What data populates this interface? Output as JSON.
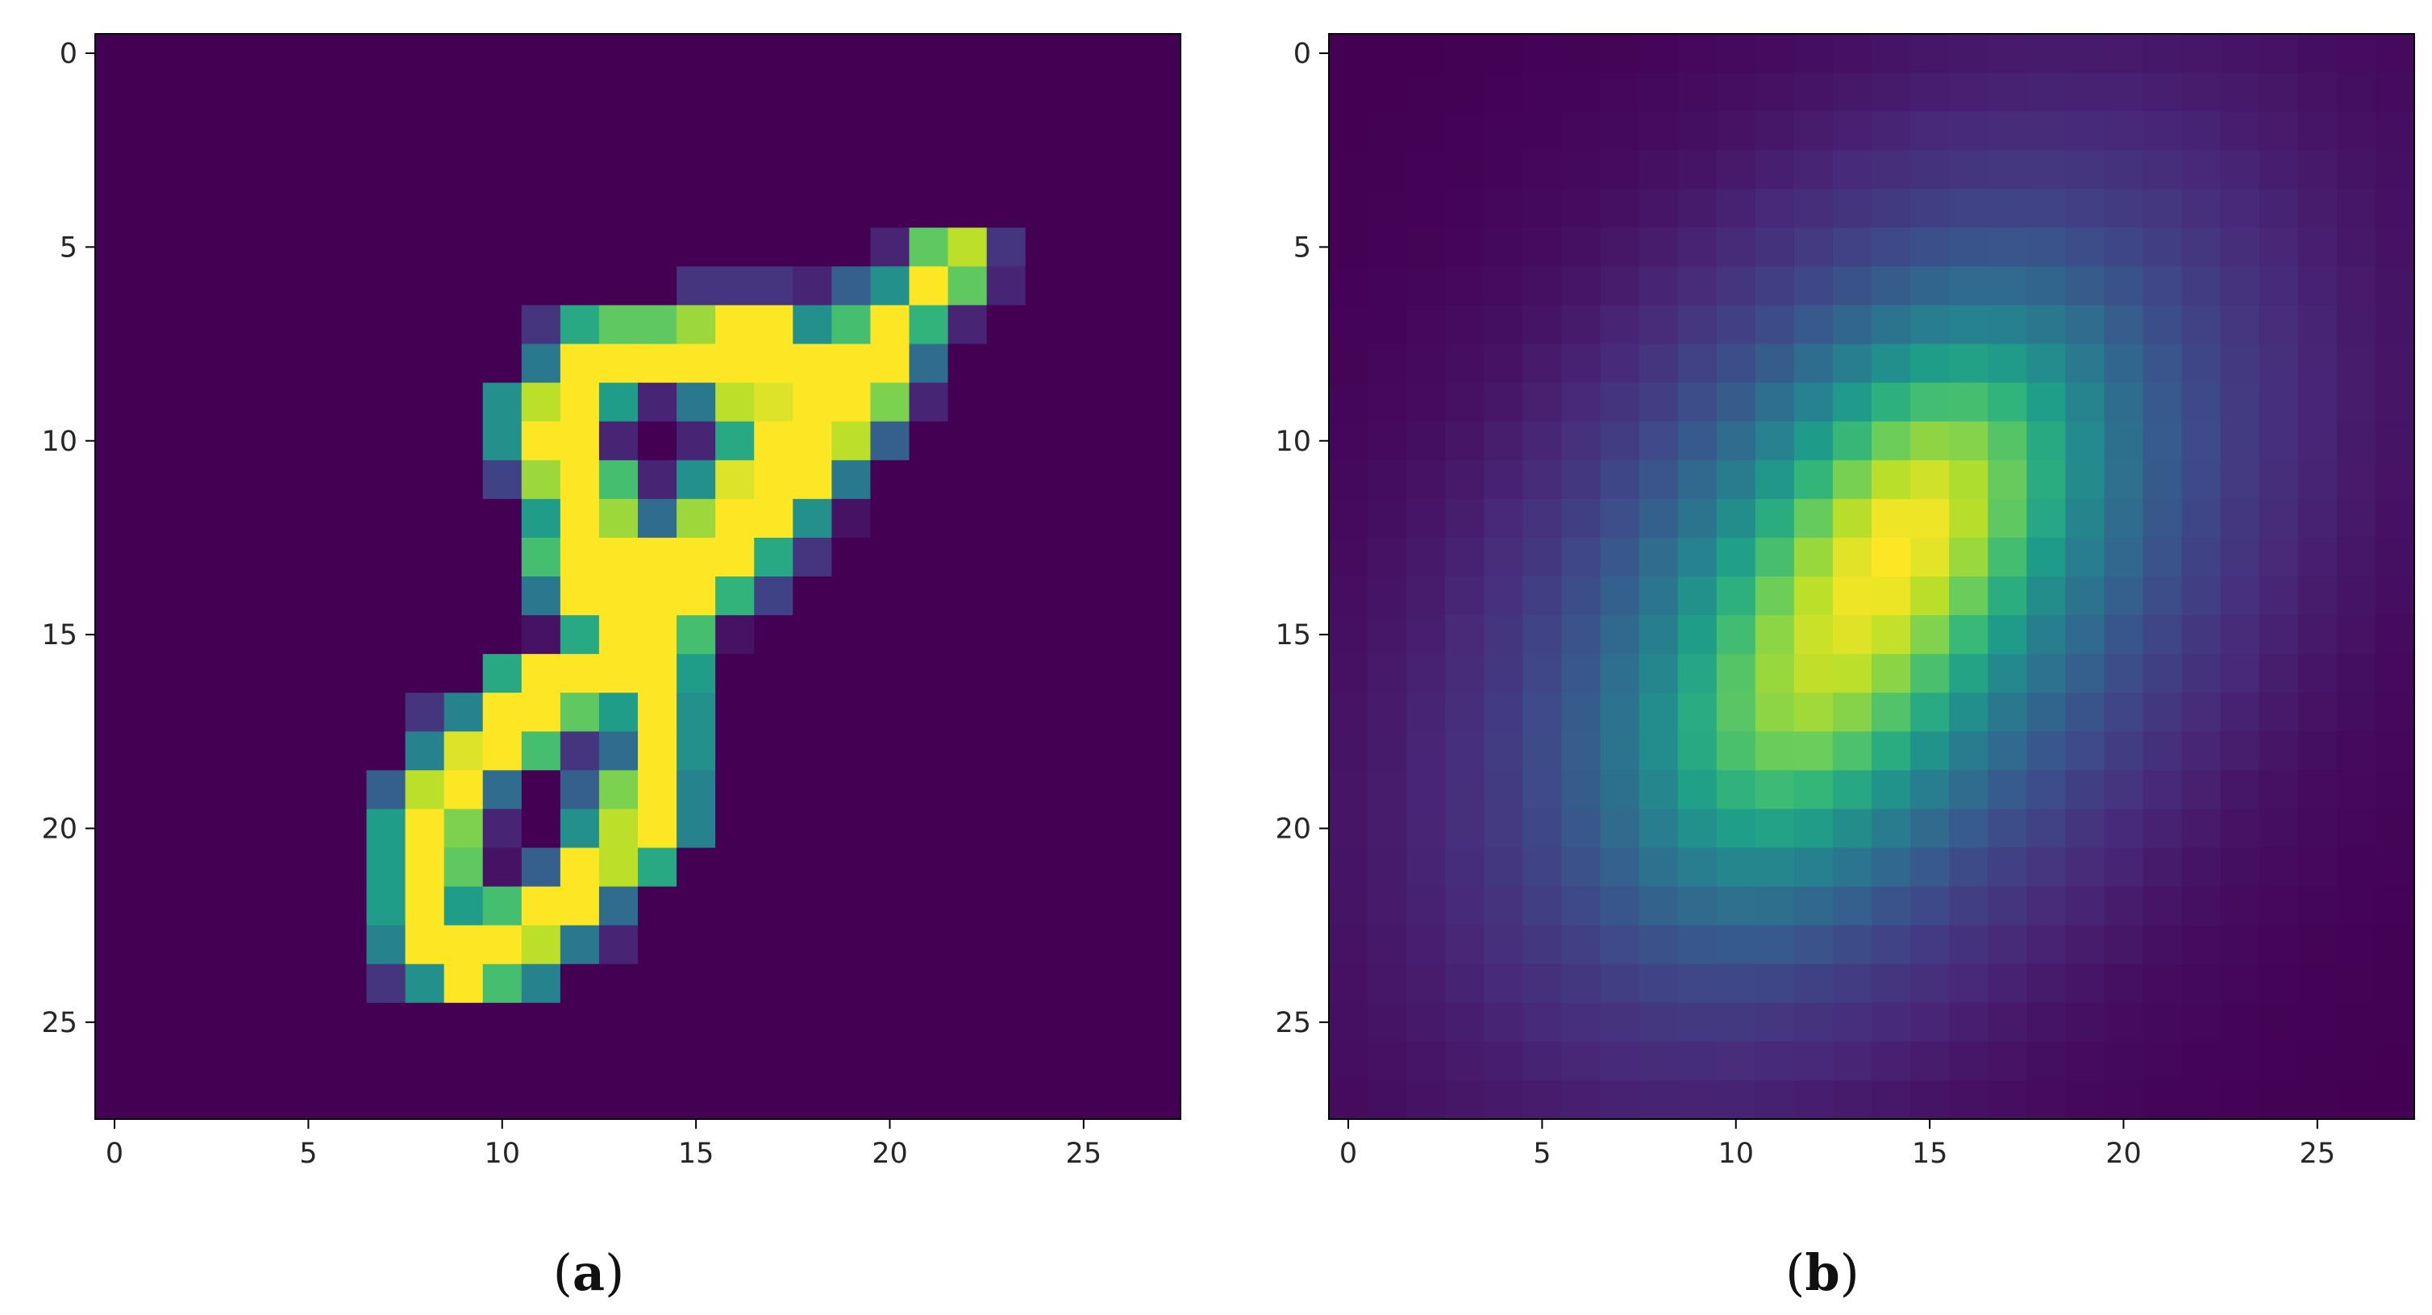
{
  "colormap": [
    "#440154",
    "#482878",
    "#3e4989",
    "#31688e",
    "#26828e",
    "#1f9e89",
    "#35b779",
    "#6ece58",
    "#b5de2b",
    "#fde725"
  ],
  "chart_data": [
    {
      "type": "heatmap",
      "caption": "(a)",
      "grid_size": [
        28,
        28
      ],
      "xticks": [
        0,
        5,
        10,
        15,
        20,
        25
      ],
      "yticks": [
        0,
        5,
        10,
        15,
        20,
        25
      ],
      "xlim": [
        -0.5,
        27.5
      ],
      "ylim": [
        27.5,
        -0.5
      ],
      "vmin": 0,
      "vmax": 1,
      "pixels": [
        [
          5,
          20,
          0.1
        ],
        [
          5,
          21,
          0.75
        ],
        [
          5,
          22,
          0.9
        ],
        [
          5,
          23,
          0.15
        ],
        [
          6,
          15,
          0.15
        ],
        [
          6,
          16,
          0.15
        ],
        [
          6,
          17,
          0.15
        ],
        [
          6,
          18,
          0.1
        ],
        [
          6,
          19,
          0.3
        ],
        [
          6,
          20,
          0.5
        ],
        [
          6,
          21,
          1.0
        ],
        [
          6,
          22,
          0.75
        ],
        [
          6,
          23,
          0.1
        ],
        [
          7,
          11,
          0.15
        ],
        [
          7,
          12,
          0.6
        ],
        [
          7,
          13,
          0.75
        ],
        [
          7,
          14,
          0.75
        ],
        [
          7,
          15,
          0.85
        ],
        [
          7,
          16,
          1.0
        ],
        [
          7,
          17,
          1.0
        ],
        [
          7,
          18,
          0.5
        ],
        [
          7,
          19,
          0.7
        ],
        [
          7,
          20,
          1.0
        ],
        [
          7,
          21,
          0.65
        ],
        [
          7,
          22,
          0.1
        ],
        [
          8,
          11,
          0.4
        ],
        [
          8,
          12,
          1.0
        ],
        [
          8,
          13,
          1.0
        ],
        [
          8,
          14,
          1.0
        ],
        [
          8,
          15,
          1.0
        ],
        [
          8,
          16,
          1.0
        ],
        [
          8,
          17,
          1.0
        ],
        [
          8,
          18,
          1.0
        ],
        [
          8,
          19,
          1.0
        ],
        [
          8,
          20,
          1.0
        ],
        [
          8,
          21,
          0.35
        ],
        [
          9,
          10,
          0.5
        ],
        [
          9,
          11,
          0.9
        ],
        [
          9,
          12,
          1.0
        ],
        [
          9,
          13,
          0.55
        ],
        [
          9,
          14,
          0.1
        ],
        [
          9,
          15,
          0.4
        ],
        [
          9,
          16,
          0.9
        ],
        [
          9,
          17,
          0.95
        ],
        [
          9,
          18,
          1.0
        ],
        [
          9,
          19,
          1.0
        ],
        [
          9,
          20,
          0.8
        ],
        [
          9,
          21,
          0.1
        ],
        [
          10,
          10,
          0.5
        ],
        [
          10,
          11,
          1.0
        ],
        [
          10,
          12,
          1.0
        ],
        [
          10,
          13,
          0.1
        ],
        [
          10,
          15,
          0.1
        ],
        [
          10,
          16,
          0.6
        ],
        [
          10,
          17,
          1.0
        ],
        [
          10,
          18,
          1.0
        ],
        [
          10,
          19,
          0.9
        ],
        [
          10,
          20,
          0.3
        ],
        [
          11,
          10,
          0.2
        ],
        [
          11,
          11,
          0.85
        ],
        [
          11,
          12,
          1.0
        ],
        [
          11,
          13,
          0.7
        ],
        [
          11,
          14,
          0.1
        ],
        [
          11,
          15,
          0.5
        ],
        [
          11,
          16,
          0.95
        ],
        [
          11,
          17,
          1.0
        ],
        [
          11,
          18,
          1.0
        ],
        [
          11,
          19,
          0.4
        ],
        [
          12,
          11,
          0.55
        ],
        [
          12,
          12,
          1.0
        ],
        [
          12,
          13,
          0.85
        ],
        [
          12,
          14,
          0.35
        ],
        [
          12,
          15,
          0.85
        ],
        [
          12,
          16,
          1.0
        ],
        [
          12,
          17,
          1.0
        ],
        [
          12,
          18,
          0.5
        ],
        [
          12,
          19,
          0.05
        ],
        [
          13,
          11,
          0.7
        ],
        [
          13,
          12,
          1.0
        ],
        [
          13,
          13,
          1.0
        ],
        [
          13,
          14,
          1.0
        ],
        [
          13,
          15,
          1.0
        ],
        [
          13,
          16,
          1.0
        ],
        [
          13,
          17,
          0.6
        ],
        [
          13,
          18,
          0.15
        ],
        [
          14,
          11,
          0.4
        ],
        [
          14,
          12,
          1.0
        ],
        [
          14,
          13,
          1.0
        ],
        [
          14,
          14,
          1.0
        ],
        [
          14,
          15,
          1.0
        ],
        [
          14,
          16,
          0.65
        ],
        [
          14,
          17,
          0.2
        ],
        [
          15,
          11,
          0.05
        ],
        [
          15,
          12,
          0.6
        ],
        [
          15,
          13,
          1.0
        ],
        [
          15,
          14,
          1.0
        ],
        [
          15,
          15,
          0.7
        ],
        [
          15,
          16,
          0.05
        ],
        [
          16,
          10,
          0.6
        ],
        [
          16,
          11,
          1.0
        ],
        [
          16,
          12,
          1.0
        ],
        [
          16,
          13,
          1.0
        ],
        [
          16,
          14,
          1.0
        ],
        [
          16,
          15,
          0.55
        ],
        [
          17,
          8,
          0.15
        ],
        [
          17,
          9,
          0.45
        ],
        [
          17,
          10,
          1.0
        ],
        [
          17,
          11,
          1.0
        ],
        [
          17,
          12,
          0.75
        ],
        [
          17,
          13,
          0.55
        ],
        [
          17,
          14,
          1.0
        ],
        [
          17,
          15,
          0.5
        ],
        [
          18,
          8,
          0.45
        ],
        [
          18,
          9,
          0.95
        ],
        [
          18,
          10,
          1.0
        ],
        [
          18,
          11,
          0.7
        ],
        [
          18,
          12,
          0.15
        ],
        [
          18,
          13,
          0.35
        ],
        [
          18,
          14,
          1.0
        ],
        [
          18,
          15,
          0.5
        ],
        [
          19,
          7,
          0.3
        ],
        [
          19,
          8,
          0.9
        ],
        [
          19,
          9,
          1.0
        ],
        [
          19,
          10,
          0.35
        ],
        [
          19,
          12,
          0.3
        ],
        [
          19,
          13,
          0.8
        ],
        [
          19,
          14,
          1.0
        ],
        [
          19,
          15,
          0.45
        ],
        [
          20,
          7,
          0.55
        ],
        [
          20,
          8,
          1.0
        ],
        [
          20,
          9,
          0.8
        ],
        [
          20,
          10,
          0.1
        ],
        [
          20,
          12,
          0.5
        ],
        [
          20,
          13,
          0.9
        ],
        [
          20,
          14,
          1.0
        ],
        [
          20,
          15,
          0.45
        ],
        [
          21,
          7,
          0.55
        ],
        [
          21,
          8,
          1.0
        ],
        [
          21,
          9,
          0.75
        ],
        [
          21,
          10,
          0.05
        ],
        [
          21,
          11,
          0.3
        ],
        [
          21,
          12,
          1.0
        ],
        [
          21,
          13,
          0.9
        ],
        [
          21,
          14,
          0.6
        ],
        [
          22,
          7,
          0.55
        ],
        [
          22,
          8,
          1.0
        ],
        [
          22,
          9,
          0.55
        ],
        [
          22,
          10,
          0.7
        ],
        [
          22,
          11,
          1.0
        ],
        [
          22,
          12,
          1.0
        ],
        [
          22,
          13,
          0.35
        ],
        [
          23,
          7,
          0.45
        ],
        [
          23,
          8,
          1.0
        ],
        [
          23,
          9,
          1.0
        ],
        [
          23,
          10,
          1.0
        ],
        [
          23,
          11,
          0.9
        ],
        [
          23,
          12,
          0.4
        ],
        [
          23,
          13,
          0.1
        ],
        [
          24,
          7,
          0.15
        ],
        [
          24,
          8,
          0.5
        ],
        [
          24,
          9,
          1.0
        ],
        [
          24,
          10,
          0.7
        ],
        [
          24,
          11,
          0.45
        ]
      ]
    },
    {
      "type": "heatmap",
      "caption": "(b)",
      "grid_size": [
        28,
        28
      ],
      "xticks": [
        0,
        5,
        10,
        15,
        20,
        25
      ],
      "yticks": [
        0,
        5,
        10,
        15,
        20,
        25
      ],
      "xlim": [
        -0.5,
        27.5
      ],
      "ylim": [
        27.5,
        -0.5
      ],
      "vmin": 0,
      "vmax": 1,
      "blobs": [
        {
          "cx": 13.5,
          "cy": 14.0,
          "sigma_major": 8.0,
          "sigma_minor": 5.2,
          "angle_deg": -52,
          "amplitude": 0.55
        },
        {
          "cx": 15.0,
          "cy": 11.5,
          "sigma_major": 3.2,
          "sigma_minor": 2.2,
          "angle_deg": -55,
          "amplitude": 0.45
        },
        {
          "cx": 11.5,
          "cy": 17.0,
          "sigma_major": 3.4,
          "sigma_minor": 2.3,
          "angle_deg": -60,
          "amplitude": 0.35
        }
      ]
    }
  ]
}
